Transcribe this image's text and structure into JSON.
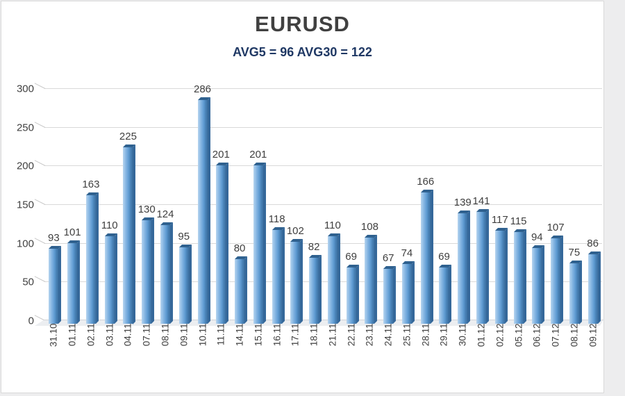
{
  "chart_data": {
    "type": "bar",
    "title": "EURUSD",
    "subtitle": "AVG5 = 96 AVG30 = 122",
    "avg5": 96,
    "avg30": 122,
    "categories": [
      "31.10",
      "01.11",
      "02.11",
      "03.11",
      "04.11",
      "07.11",
      "08.11",
      "09.11",
      "10.11",
      "11.11",
      "14.11",
      "15.11",
      "16.11",
      "17.11",
      "18.11",
      "21.11",
      "22.11",
      "23.11",
      "24.11",
      "25.11",
      "28.11",
      "29.11",
      "30.11",
      "01.12",
      "02.12",
      "05.12",
      "06.12",
      "07.12",
      "08.12",
      "09.12"
    ],
    "values": [
      93,
      101,
      163,
      110,
      225,
      130,
      124,
      95,
      286,
      201,
      80,
      201,
      118,
      102,
      82,
      110,
      69,
      108,
      67,
      74,
      166,
      69,
      139,
      141,
      117,
      115,
      94,
      107,
      75,
      86
    ],
    "xlabel": "",
    "ylabel": "",
    "ylim": [
      0,
      300
    ],
    "yticks": [
      0,
      50,
      100,
      150,
      200,
      250,
      300
    ],
    "grid": true,
    "legend": false,
    "data_labels": true,
    "colors": {
      "bar_main": "#5b9bd5",
      "bar_highlight": "#b7d5ef",
      "bar_shadow": "#3d71a2",
      "bar_top_cap": "#2f618f",
      "gridline": "#d9d9d9",
      "floor": "#eceef1",
      "title": "#404040",
      "subtitle": "#1f3864",
      "value_label": "#3f3f3f",
      "axis_label": "#404040",
      "background": "#ffffff"
    }
  }
}
